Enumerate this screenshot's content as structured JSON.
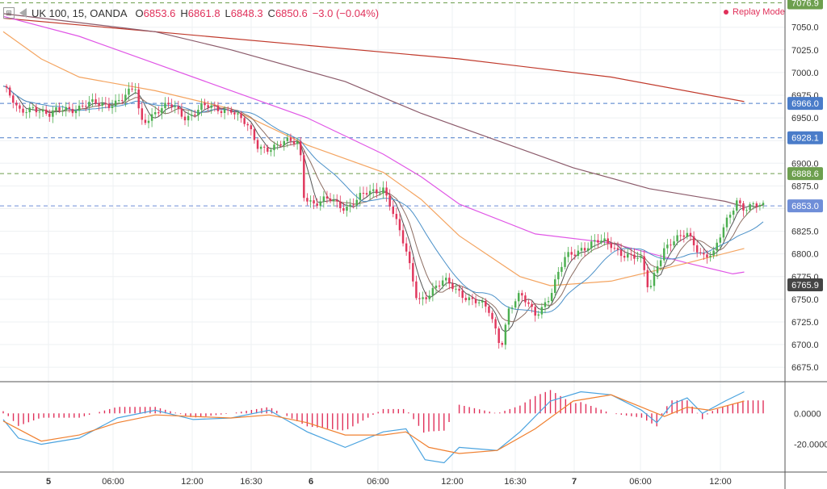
{
  "header": {
    "symbol_title": "UK 100, 15, OANDA",
    "ohlc": [
      {
        "key": "O",
        "value": "6853.6"
      },
      {
        "key": "H",
        "value": "6861.8"
      },
      {
        "key": "L",
        "value": "6848.3"
      },
      {
        "key": "C",
        "value": "6850.6"
      }
    ],
    "change": "−3.0 (−0.04%)",
    "replay_label": "Replay Mode",
    "icons": [
      "symbol-icon",
      "collapse-arrow-icon",
      "replay-dot-icon"
    ]
  },
  "colors": {
    "up": "#4caf50",
    "down": "#e0365c",
    "ma_fast1": "#555555",
    "ma_fast2": "#8d6e63",
    "ma_mid": "#4a90c8",
    "ma_orange": "#f4a460",
    "ma_magenta": "#e056e6",
    "ma_brown": "#8b5a6a",
    "ma_red": "#c0392b",
    "macd_line": "#4aa3df",
    "signal_line": "#f08030",
    "hist": "#e0305a"
  },
  "chart_data": [
    {
      "type": "candlestick",
      "x_tick_labels": [
        "5",
        "06:00",
        "12:00",
        "16:30",
        "6",
        "06:00",
        "12:00",
        "16:30",
        "7",
        "06:00",
        "12:00"
      ],
      "y_tick_labels": [
        "7050.0",
        "7025.0",
        "7000.0",
        "6975.0",
        "6950.0",
        "6925.0",
        "6900.0",
        "6875.0",
        "6850.0",
        "6825.0",
        "6800.0",
        "6775.0",
        "6750.0",
        "6725.0",
        "6700.0",
        "6675.0"
      ],
      "ylim": [
        6660,
        7080
      ],
      "horizontal_levels": [
        {
          "label": "7076.9",
          "value": 7076.9,
          "style": "dashed-green",
          "color": "#6d9f4e"
        },
        {
          "label": "6966.0",
          "value": 6966.0,
          "style": "dashed-blue",
          "color": "#4a7cc9"
        },
        {
          "label": "6928.1",
          "value": 6928.1,
          "style": "dashed-blue",
          "color": "#4a7cc9"
        },
        {
          "label": "6888.6",
          "value": 6888.6,
          "style": "dashed-green",
          "color": "#6d9f4e"
        },
        {
          "label": "6853.0",
          "value": 6853.0,
          "style": "dashed-blue-current",
          "color": "#6f8ed8"
        },
        {
          "label": "6765.9",
          "value": 6765.9,
          "style": "label-only",
          "color": "#444444"
        }
      ],
      "close_path": [
        [
          0,
          6985
        ],
        [
          0.02,
          6955
        ],
        [
          0.04,
          6965
        ],
        [
          0.06,
          6950
        ],
        [
          0.08,
          6962
        ],
        [
          0.1,
          6962
        ],
        [
          0.13,
          6965
        ],
        [
          0.16,
          6972
        ],
        [
          0.175,
          6982
        ],
        [
          0.18,
          6945
        ],
        [
          0.2,
          6958
        ],
        [
          0.22,
          6962
        ],
        [
          0.24,
          6952
        ],
        [
          0.26,
          6962
        ],
        [
          0.28,
          6958
        ],
        [
          0.3,
          6962
        ],
        [
          0.32,
          6940
        ],
        [
          0.335,
          6918
        ],
        [
          0.36,
          6920
        ],
        [
          0.39,
          6923
        ],
        [
          0.395,
          6868
        ],
        [
          0.41,
          6855
        ],
        [
          0.43,
          6858
        ],
        [
          0.45,
          6853
        ],
        [
          0.47,
          6862
        ],
        [
          0.49,
          6868
        ],
        [
          0.5,
          6875
        ],
        [
          0.51,
          6855
        ],
        [
          0.53,
          6800
        ],
        [
          0.545,
          6750
        ],
        [
          0.56,
          6758
        ],
        [
          0.58,
          6768
        ],
        [
          0.6,
          6760
        ],
        [
          0.62,
          6748
        ],
        [
          0.64,
          6735
        ],
        [
          0.655,
          6700
        ],
        [
          0.665,
          6740
        ],
        [
          0.68,
          6752
        ],
        [
          0.7,
          6735
        ],
        [
          0.72,
          6755
        ],
        [
          0.74,
          6795
        ],
        [
          0.76,
          6808
        ],
        [
          0.78,
          6812
        ],
        [
          0.8,
          6810
        ],
        [
          0.82,
          6800
        ],
        [
          0.84,
          6790
        ],
        [
          0.85,
          6758
        ],
        [
          0.86,
          6790
        ],
        [
          0.87,
          6808
        ],
        [
          0.89,
          6815
        ],
        [
          0.9,
          6822
        ],
        [
          0.91,
          6812
        ],
        [
          0.92,
          6800
        ],
        [
          0.935,
          6798
        ],
        [
          0.95,
          6832
        ],
        [
          0.965,
          6862
        ],
        [
          0.975,
          6851
        ]
      ],
      "moving_averages": [
        {
          "name": "",
          "color": "#c0392b",
          "points": [
            [
              0,
              7060
            ],
            [
              0.2,
              7045
            ],
            [
              0.4,
              7030
            ],
            [
              0.6,
              7015
            ],
            [
              0.8,
              6995
            ],
            [
              0.975,
              6968
            ]
          ]
        },
        {
          "name": "",
          "color": "#8b5a6a",
          "points": [
            [
              0,
              7065
            ],
            [
              0.2,
              7045
            ],
            [
              0.3,
              7025
            ],
            [
              0.45,
              6990
            ],
            [
              0.55,
              6955
            ],
            [
              0.65,
              6925
            ],
            [
              0.75,
              6895
            ],
            [
              0.85,
              6872
            ],
            [
              0.95,
              6858
            ],
            [
              0.975,
              6852
            ]
          ]
        },
        {
          "name": "",
          "color": "#e056e6",
          "points": [
            [
              0,
              7062
            ],
            [
              0.1,
              7040
            ],
            [
              0.2,
              7010
            ],
            [
              0.3,
              6980
            ],
            [
              0.4,
              6950
            ],
            [
              0.5,
              6910
            ],
            [
              0.55,
              6885
            ],
            [
              0.6,
              6855
            ],
            [
              0.7,
              6822
            ],
            [
              0.8,
              6812
            ],
            [
              0.9,
              6790
            ],
            [
              0.96,
              6778
            ],
            [
              0.975,
              6780
            ]
          ]
        },
        {
          "name": "",
          "color": "#f4a460",
          "points": [
            [
              0,
              7045
            ],
            [
              0.05,
              7015
            ],
            [
              0.1,
              6995
            ],
            [
              0.2,
              6980
            ],
            [
              0.3,
              6960
            ],
            [
              0.4,
              6920
            ],
            [
              0.5,
              6890
            ],
            [
              0.55,
              6860
            ],
            [
              0.6,
              6820
            ],
            [
              0.68,
              6775
            ],
            [
              0.72,
              6765
            ],
            [
              0.8,
              6770
            ],
            [
              0.9,
              6790
            ],
            [
              0.975,
              6806
            ]
          ]
        }
      ]
    },
    {
      "type": "macd",
      "y_tick_labels": [
        "0.0000",
        "-20.0000"
      ],
      "ylim": [
        -38,
        20
      ],
      "macd_line": [
        [
          0,
          -4
        ],
        [
          0.02,
          -16
        ],
        [
          0.05,
          -20
        ],
        [
          0.1,
          -16
        ],
        [
          0.15,
          -3
        ],
        [
          0.2,
          2
        ],
        [
          0.25,
          -4
        ],
        [
          0.3,
          -3
        ],
        [
          0.35,
          2
        ],
        [
          0.4,
          -12
        ],
        [
          0.45,
          -22
        ],
        [
          0.5,
          -12
        ],
        [
          0.53,
          -10
        ],
        [
          0.555,
          -30
        ],
        [
          0.58,
          -32
        ],
        [
          0.6,
          -22
        ],
        [
          0.65,
          -24
        ],
        [
          0.68,
          -12
        ],
        [
          0.72,
          8
        ],
        [
          0.76,
          14
        ],
        [
          0.8,
          12
        ],
        [
          0.84,
          2
        ],
        [
          0.86,
          -6
        ],
        [
          0.88,
          6
        ],
        [
          0.9,
          10
        ],
        [
          0.92,
          0
        ],
        [
          0.95,
          8
        ],
        [
          0.975,
          14
        ]
      ],
      "signal_line": [
        [
          0,
          -5
        ],
        [
          0.05,
          -18
        ],
        [
          0.1,
          -14
        ],
        [
          0.15,
          -6
        ],
        [
          0.2,
          -1
        ],
        [
          0.25,
          -2
        ],
        [
          0.3,
          -3
        ],
        [
          0.35,
          -1
        ],
        [
          0.4,
          -6
        ],
        [
          0.45,
          -14
        ],
        [
          0.5,
          -14
        ],
        [
          0.53,
          -12
        ],
        [
          0.56,
          -22
        ],
        [
          0.6,
          -26
        ],
        [
          0.65,
          -24
        ],
        [
          0.7,
          -10
        ],
        [
          0.75,
          8
        ],
        [
          0.8,
          12
        ],
        [
          0.84,
          4
        ],
        [
          0.87,
          -2
        ],
        [
          0.9,
          4
        ],
        [
          0.93,
          2
        ],
        [
          0.975,
          8
        ]
      ]
    }
  ]
}
